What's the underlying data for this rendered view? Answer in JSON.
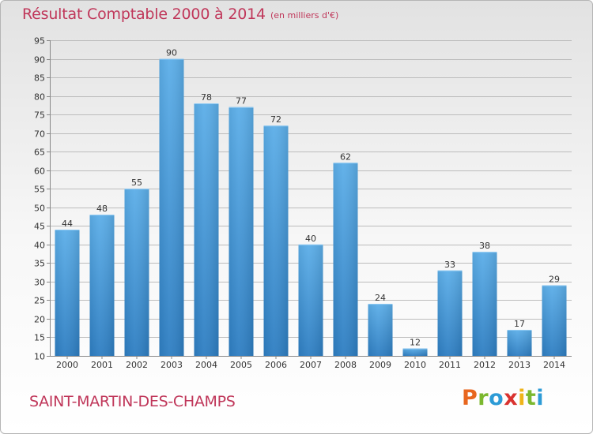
{
  "header": {
    "title": "Résultat Comptable 2000 à 2014",
    "subtitle": "(en milliers d'€)"
  },
  "footer": {
    "commune": "SAINT-MARTIN-DES-CHAMPS",
    "brand": [
      "P",
      "r",
      "o",
      "x",
      "i",
      "t",
      "i"
    ]
  },
  "colors": {
    "title": "#c0375a",
    "bar_top": "#5caee8",
    "bar_bottom": "#2e7ec2",
    "grid": "#bcbcbc"
  },
  "chart_data": {
    "type": "bar",
    "title": "Résultat Comptable 2000 à 2014",
    "subtitle": "(en milliers d'€)",
    "categories": [
      "2000",
      "2001",
      "2002",
      "2003",
      "2004",
      "2005",
      "2006",
      "2007",
      "2008",
      "2009",
      "2010",
      "2011",
      "2012",
      "2013",
      "2014"
    ],
    "values": [
      44,
      48,
      55,
      90,
      78,
      77,
      72,
      40,
      62,
      24,
      12,
      33,
      38,
      17,
      29
    ],
    "ylim": [
      10,
      95
    ],
    "yticks": [
      10,
      15,
      20,
      25,
      30,
      35,
      40,
      45,
      50,
      55,
      60,
      65,
      70,
      75,
      80,
      85,
      90,
      95
    ],
    "grid": true,
    "data_labels": true
  }
}
